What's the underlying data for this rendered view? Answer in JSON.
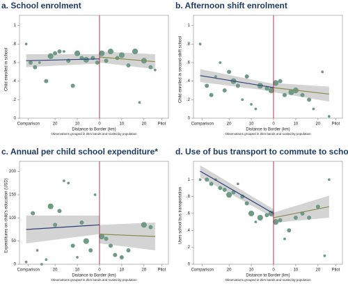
{
  "chart_data": [
    {
      "type": "scatter",
      "title": "a. School enrolment",
      "ylabel": "Child enrolled in school",
      "xlabel": "Distance to Border (km)",
      "note": "Observations grouped in 2km bands and scaled by population",
      "color": "#6e9a86",
      "cutoff": 0,
      "cutoff_color": "#b01e3c",
      "band_color": "#c9c9c9",
      "xlim": [
        -36,
        31
      ],
      "ylim": [
        0,
        1.05
      ],
      "xticks": [
        {
          "value": -32,
          "label": "Comparison"
        },
        {
          "value": -20,
          "label": "20"
        },
        {
          "value": -10,
          "label": "10"
        },
        0,
        10,
        20,
        {
          "value": 28,
          "label": "Pilot"
        }
      ],
      "yticks": [
        0,
        {
          "value": 0.2,
          "label": ".2"
        },
        {
          "value": 0.4,
          "label": ".4"
        },
        {
          "value": 0.6,
          "label": ".6"
        },
        {
          "value": 0.8,
          "label": ".8"
        },
        1
      ],
      "x": [
        -33,
        -31,
        -29,
        -27,
        -24,
        -22,
        -20,
        -18,
        -16,
        -14,
        -12,
        -10,
        -8,
        -6,
        -3,
        -1,
        1,
        3,
        5,
        8,
        10,
        13,
        16,
        18,
        20,
        23,
        25
      ],
      "y": [
        0.8,
        0.6,
        0.55,
        0.6,
        0.4,
        0.67,
        0.7,
        0.72,
        0.72,
        0.62,
        0.35,
        0.7,
        0.65,
        0.63,
        0.65,
        0.6,
        0.7,
        0.62,
        0.72,
        0.65,
        0.68,
        0.57,
        0.72,
        0.17,
        0.62,
        0.55,
        0.52
      ],
      "sizes": [
        1,
        2,
        2,
        1,
        2,
        3,
        2,
        2,
        1,
        2,
        2,
        3,
        2,
        3,
        2,
        2,
        3,
        2,
        3,
        2,
        3,
        2,
        3,
        1,
        3,
        2,
        1
      ],
      "fits": [
        {
          "color": "#2c3e78",
          "x": [
            -33,
            0
          ],
          "y": [
            0.62,
            0.64
          ],
          "lo": [
            0.55,
            0.59
          ],
          "hi": [
            0.69,
            0.69
          ]
        },
        {
          "color": "#8a8a4a",
          "x": [
            0,
            25
          ],
          "y": [
            0.66,
            0.61
          ],
          "lo": [
            0.6,
            0.53
          ],
          "hi": [
            0.72,
            0.69
          ]
        }
      ]
    },
    {
      "type": "scatter",
      "title": "b. Afternoon shift enrolment",
      "ylabel": "Child enrolled in second-shift school",
      "xlabel": "Distance to Border (km)",
      "note": "Observations grouped in 2km bands and scaled by population",
      "color": "#6e9a86",
      "cutoff": 0,
      "cutoff_color": "#b01e3c",
      "band_color": "#c9c9c9",
      "xlim": [
        -36,
        31
      ],
      "ylim": [
        0,
        1.05
      ],
      "xticks": [
        {
          "value": -32,
          "label": "Comparison"
        },
        {
          "value": -20,
          "label": "20"
        },
        {
          "value": -10,
          "label": "10"
        },
        0,
        10,
        20,
        {
          "value": 28,
          "label": "Pilot"
        }
      ],
      "yticks": [
        0,
        {
          "value": 0.2,
          "label": ".2"
        },
        {
          "value": 0.4,
          "label": ".4"
        },
        {
          "value": 0.6,
          "label": ".6"
        },
        {
          "value": 0.8,
          "label": ".8"
        },
        1
      ],
      "x": [
        -33,
        -30,
        -28,
        -26,
        -24,
        -22,
        -20,
        -18,
        -16,
        -14,
        -12,
        -10,
        -8,
        -6,
        -3,
        -1,
        1,
        3,
        5,
        8,
        10,
        13,
        16,
        18,
        22,
        25
      ],
      "y": [
        0.8,
        0.35,
        0.25,
        0.45,
        0.6,
        0.3,
        0.5,
        0.4,
        0.35,
        0.2,
        0.45,
        0.15,
        0.1,
        0.35,
        0.32,
        0.3,
        0.38,
        0.4,
        0.25,
        0.28,
        0.3,
        0.25,
        0.2,
        0.1,
        0.5,
        0.02
      ],
      "sizes": [
        1,
        2,
        2,
        1,
        1,
        2,
        2,
        3,
        2,
        1,
        2,
        1,
        1,
        3,
        2,
        3,
        3,
        2,
        2,
        3,
        3,
        2,
        2,
        1,
        1,
        1
      ],
      "fits": [
        {
          "color": "#2c3e78",
          "x": [
            -33,
            0
          ],
          "y": [
            0.46,
            0.33
          ],
          "lo": [
            0.39,
            0.29
          ],
          "hi": [
            0.53,
            0.37
          ]
        },
        {
          "color": "#8a8a4a",
          "x": [
            0,
            25
          ],
          "y": [
            0.33,
            0.26
          ],
          "lo": [
            0.28,
            0.18
          ],
          "hi": [
            0.38,
            0.34
          ]
        }
      ]
    },
    {
      "type": "scatter",
      "title": "c. Annual per child school expenditure*",
      "ylabel": "Expenditures on child's education (USD)",
      "xlabel": "Distance to Border (km)",
      "note": "Observations grouped in 2km bands and scaled by population",
      "color": "#6e9a86",
      "cutoff": 0,
      "cutoff_color": "#b01e3c",
      "band_color": "#c9c9c9",
      "xlim": [
        -36,
        31
      ],
      "ylim": [
        0,
        210
      ],
      "xticks": [
        {
          "value": -32,
          "label": "Comparison"
        },
        {
          "value": -20,
          "label": "20"
        },
        {
          "value": -10,
          "label": "10"
        },
        0,
        10,
        20,
        {
          "value": 28,
          "label": "Pilot"
        }
      ],
      "yticks": [
        0,
        50,
        100,
        150,
        200
      ],
      "x": [
        -33,
        -30,
        -28,
        -26,
        -24,
        -22,
        -20,
        -18,
        -16,
        -14,
        -12,
        -10,
        -8,
        -6,
        -4,
        -2,
        1,
        3,
        5,
        7,
        10,
        13,
        20,
        23
      ],
      "y": [
        5,
        110,
        30,
        0,
        10,
        125,
        85,
        115,
        180,
        175,
        40,
        15,
        90,
        50,
        30,
        150,
        60,
        55,
        40,
        20,
        15,
        30,
        85,
        80
      ],
      "sizes": [
        1,
        2,
        1,
        1,
        1,
        3,
        2,
        2,
        1,
        1,
        2,
        1,
        2,
        3,
        2,
        1,
        3,
        2,
        2,
        2,
        2,
        2,
        3,
        2
      ],
      "fits": [
        {
          "color": "#2c3e78",
          "x": [
            -33,
            0
          ],
          "y": [
            75,
            85
          ],
          "lo": [
            45,
            65
          ],
          "hi": [
            105,
            105
          ]
        },
        {
          "color": "#8a8a4a",
          "x": [
            0,
            25
          ],
          "y": [
            65,
            60
          ],
          "lo": [
            45,
            30
          ],
          "hi": [
            85,
            90
          ]
        }
      ]
    },
    {
      "type": "scatter",
      "title": "d. Use of bus transport to commute to school*",
      "ylabel": "Uses school bus transportation",
      "xlabel": "Distance to Border (km)",
      "note": "Observations grouped in 2km bands and scaled by population",
      "color": "#6e9a86",
      "cutoff": 0,
      "cutoff_color": "#b01e3c",
      "band_color": "#c9c9c9",
      "xlim": [
        -36,
        31
      ],
      "ylim": [
        0,
        1.15
      ],
      "xticks": [
        {
          "value": -32,
          "label": "Comparison"
        },
        {
          "value": -20,
          "label": "20"
        },
        {
          "value": -10,
          "label": "10"
        },
        0,
        10,
        20,
        {
          "value": 28,
          "label": "Pilot"
        }
      ],
      "yticks": [
        0,
        {
          "value": 0.2,
          "label": ".2"
        },
        {
          "value": 0.4,
          "label": ".4"
        },
        {
          "value": 0.6,
          "label": ".6"
        },
        {
          "value": 0.8,
          "label": ".8"
        },
        1
      ],
      "x": [
        -33,
        -30,
        -28,
        -26,
        -24,
        -22,
        -20,
        -18,
        -16,
        -14,
        -12,
        -10,
        -8,
        -6,
        -3,
        -1,
        1,
        3,
        5,
        7,
        10,
        13,
        16,
        20,
        23,
        25
      ],
      "y": [
        1,
        1,
        0.95,
        1,
        0.9,
        0.88,
        0.82,
        0.85,
        0.95,
        0.8,
        0.72,
        0.6,
        0.5,
        0.55,
        0.58,
        0.6,
        0.5,
        0.52,
        0.3,
        0.4,
        0.55,
        0.6,
        0.55,
        0.68,
        0.1,
        1
      ],
      "sizes": [
        1,
        2,
        2,
        1,
        2,
        2,
        3,
        2,
        1,
        2,
        2,
        3,
        1,
        3,
        2,
        3,
        3,
        2,
        1,
        2,
        2,
        2,
        2,
        2,
        1,
        1
      ],
      "fits": [
        {
          "color": "#2c3e78",
          "x": [
            -33,
            0
          ],
          "y": [
            1.1,
            0.6
          ],
          "lo": [
            1.03,
            0.55
          ],
          "hi": [
            1.17,
            0.65
          ]
        },
        {
          "color": "#8a8a4a",
          "x": [
            0,
            25
          ],
          "y": [
            0.55,
            0.68
          ],
          "lo": [
            0.49,
            0.55
          ],
          "hi": [
            0.61,
            0.81
          ]
        }
      ]
    }
  ]
}
